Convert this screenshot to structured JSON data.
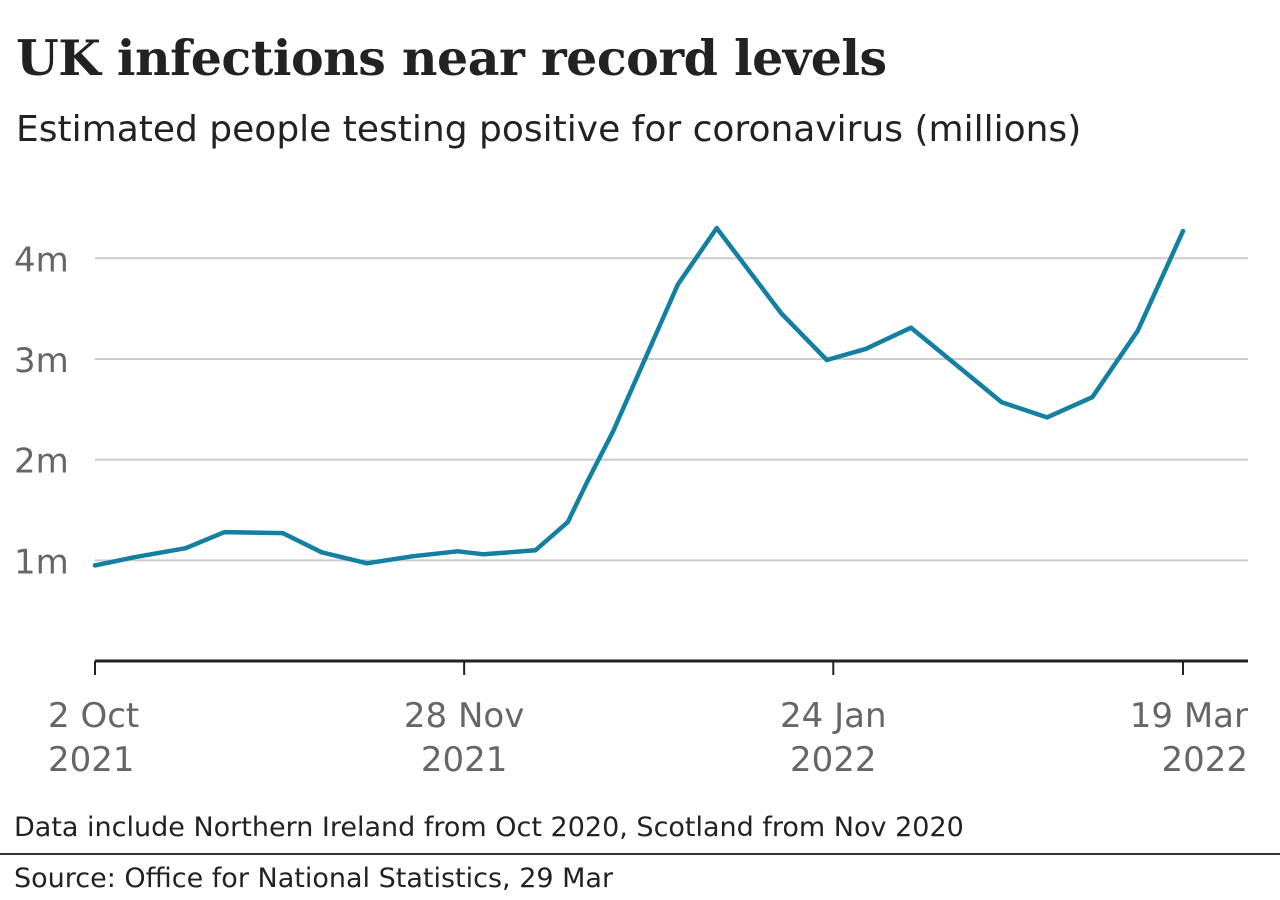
{
  "title": "UK infections near record levels",
  "subtitle": "Estimated people testing positive for coronavirus (millions)",
  "note": "Data include Northern Ireland from Oct 2020, Scotland from Nov 2020",
  "source": "Source: Office for National Statistics, 29 Mar",
  "colors": {
    "line": "#1380a1",
    "grid": "#cccccc",
    "axis": "#222222",
    "tick_text": "#666666"
  },
  "chart_data": {
    "type": "line",
    "title": "UK infections near record levels",
    "subtitle": "Estimated people testing positive for coronavirus (millions)",
    "xlabel": "",
    "ylabel": "",
    "ylim": [
      0,
      4.4
    ],
    "grid": true,
    "legend": "none",
    "y_ticks": [
      {
        "value": 1,
        "label": "1m"
      },
      {
        "value": 2,
        "label": "2m"
      },
      {
        "value": 3,
        "label": "3m"
      },
      {
        "value": 4,
        "label": "4m"
      }
    ],
    "x_ticks": [
      {
        "date": "2021-10-02",
        "line1": "2 Oct",
        "line2": "2021"
      },
      {
        "date": "2021-11-28",
        "line1": "28 Nov",
        "line2": "2021"
      },
      {
        "date": "2022-01-24",
        "line1": "24 Jan",
        "line2": "2022"
      },
      {
        "date": "2022-03-19",
        "line1": "19 Mar",
        "line2": "2022"
      }
    ],
    "series": [
      {
        "values": [
          {
            "x": "2021-10-02",
            "y": 0.95
          },
          {
            "x": "2021-10-08",
            "y": 1.03
          },
          {
            "x": "2021-10-16",
            "y": 1.12
          },
          {
            "x": "2021-10-22",
            "y": 1.28
          },
          {
            "x": "2021-10-31",
            "y": 1.27
          },
          {
            "x": "2021-11-06",
            "y": 1.08
          },
          {
            "x": "2021-11-13",
            "y": 0.97
          },
          {
            "x": "2021-11-20",
            "y": 1.04
          },
          {
            "x": "2021-11-27",
            "y": 1.09
          },
          {
            "x": "2021-12-01",
            "y": 1.06
          },
          {
            "x": "2021-12-09",
            "y": 1.1
          },
          {
            "x": "2021-12-14",
            "y": 1.38
          },
          {
            "x": "2021-12-17",
            "y": 1.78
          },
          {
            "x": "2021-12-21",
            "y": 2.28
          },
          {
            "x": "2021-12-31",
            "y": 3.74
          },
          {
            "x": "2022-01-06",
            "y": 4.3
          },
          {
            "x": "2022-01-16",
            "y": 3.45
          },
          {
            "x": "2022-01-23",
            "y": 2.99
          },
          {
            "x": "2022-01-29",
            "y": 3.1
          },
          {
            "x": "2022-02-05",
            "y": 3.31
          },
          {
            "x": "2022-02-19",
            "y": 2.57
          },
          {
            "x": "2022-02-26",
            "y": 2.42
          },
          {
            "x": "2022-03-05",
            "y": 2.62
          },
          {
            "x": "2022-03-12",
            "y": 3.28
          },
          {
            "x": "2022-03-19",
            "y": 4.27
          }
        ]
      }
    ]
  }
}
